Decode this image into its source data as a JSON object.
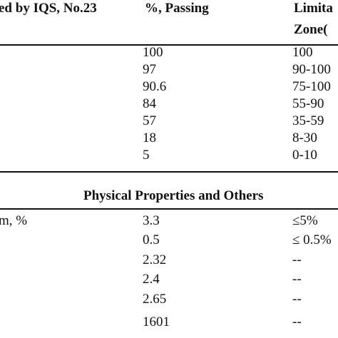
{
  "table": {
    "header": {
      "col1": "ed by IQS, No.23",
      "col2": "%, Passing",
      "col3_line1": "Limita",
      "col3_line2": "Zone("
    },
    "grading_rows": [
      {
        "passing": "100",
        "limit": "100"
      },
      {
        "passing": "97",
        "limit": "90-100"
      },
      {
        "passing": "90.6",
        "limit": "75-100"
      },
      {
        "passing": "84",
        "limit": "55-90"
      },
      {
        "passing": "57",
        "limit": "35-59"
      },
      {
        "passing": "18",
        "limit": "8-30"
      },
      {
        "passing": "5",
        "limit": "0-10"
      }
    ],
    "section_title": "Physical Properties and Others",
    "property_rows": [
      {
        "property": "m, %",
        "value": "3.3",
        "limit": "≤5%"
      },
      {
        "property": "",
        "value": "0.5",
        "limit": "≤ 0.5%"
      },
      {
        "property": "",
        "value": "2.32",
        "limit": "--"
      },
      {
        "property": "",
        "value": "2.4",
        "limit": "--"
      },
      {
        "property": "",
        "value": "2.65",
        "limit": "--"
      },
      {
        "property": "",
        "value": "1601",
        "limit": "--"
      }
    ]
  }
}
